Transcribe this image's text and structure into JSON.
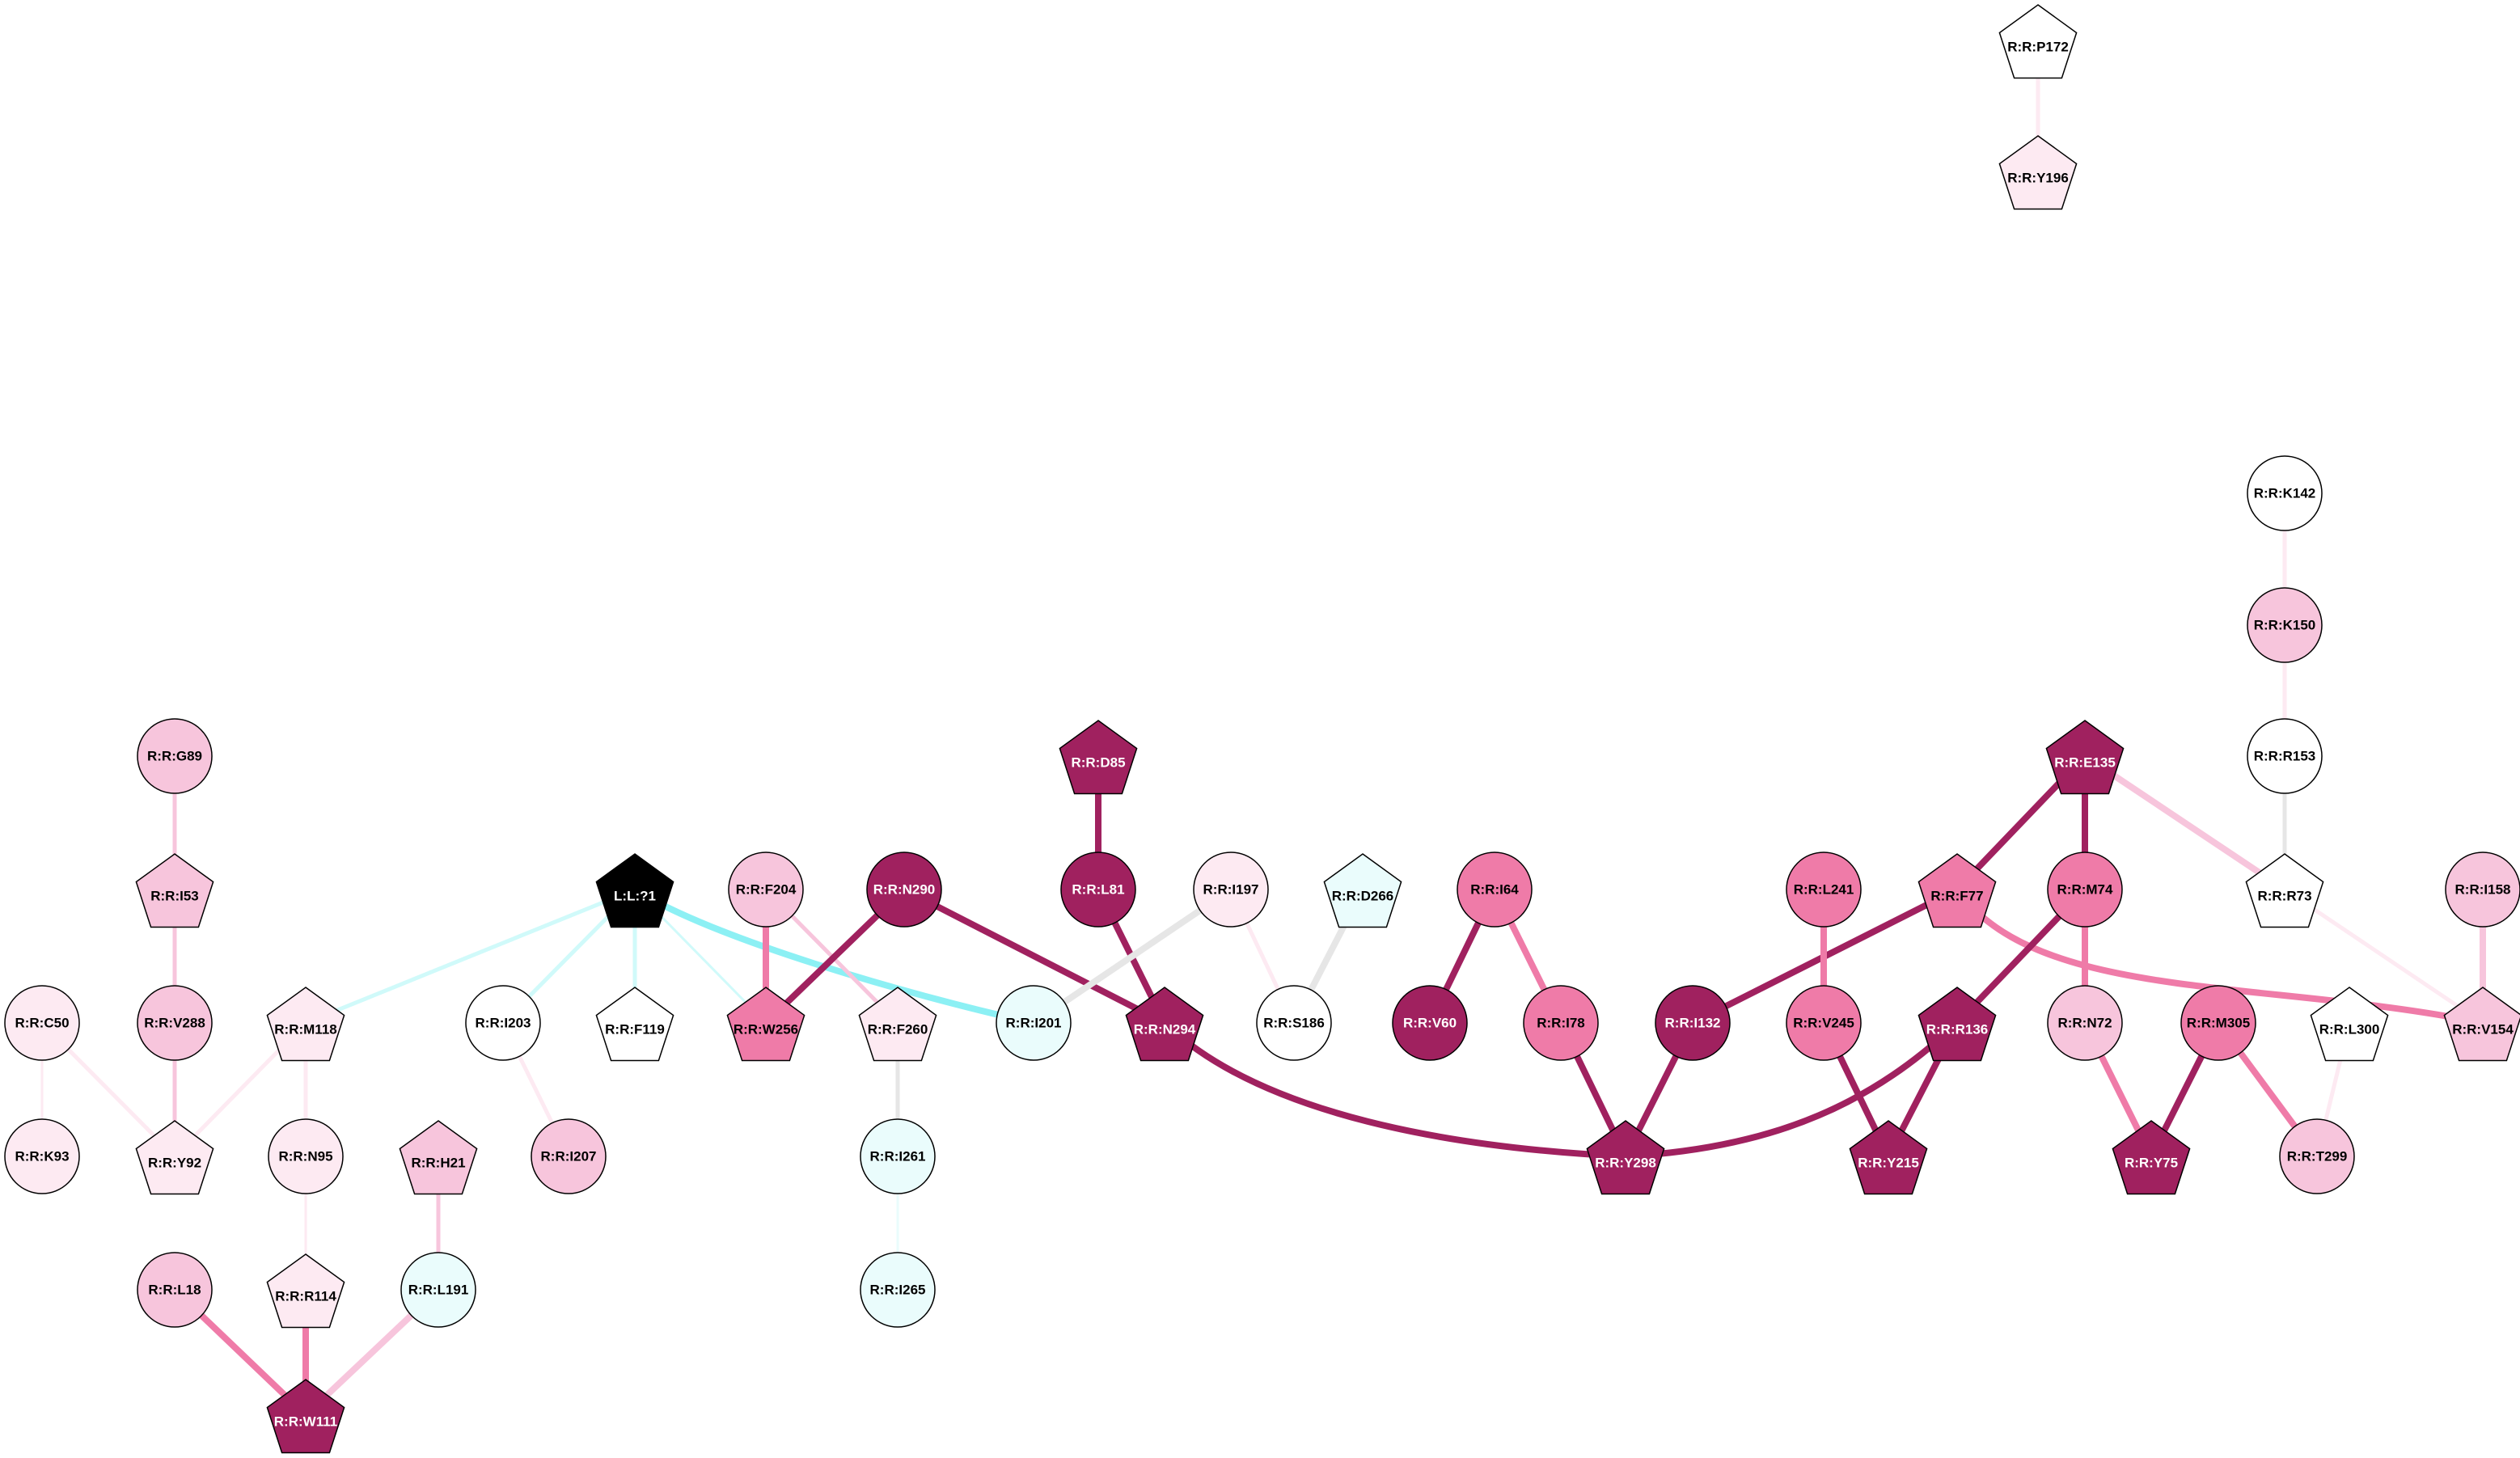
{
  "nodes": [
    {
      "id": "L:L:?1",
      "shape": "pentagon",
      "fill": "#000000",
      "text": "#ffffff"
    },
    {
      "id": "R:R:P172",
      "shape": "pentagon",
      "fill": "#ffffff",
      "text": "#000000"
    },
    {
      "id": "R:R:Y196",
      "shape": "pentagon",
      "fill": "#fdeaf2",
      "text": "#000000"
    },
    {
      "id": "R:R:K142",
      "shape": "circle",
      "fill": "#ffffff",
      "text": "#000000"
    },
    {
      "id": "R:R:K150",
      "shape": "circle",
      "fill": "#f7c5dc",
      "text": "#000000"
    },
    {
      "id": "R:R:R153",
      "shape": "circle",
      "fill": "#ffffff",
      "text": "#000000"
    },
    {
      "id": "R:R:G89",
      "shape": "circle",
      "fill": "#f7c5dc",
      "text": "#000000"
    },
    {
      "id": "R:R:I53",
      "shape": "pentagon",
      "fill": "#f7c5dc",
      "text": "#000000"
    },
    {
      "id": "R:R:D85",
      "shape": "pentagon",
      "fill": "#a0215f",
      "text": "#ffffff"
    },
    {
      "id": "R:R:E135",
      "shape": "pentagon",
      "fill": "#a0215f",
      "text": "#ffffff"
    },
    {
      "id": "R:R:F204",
      "shape": "circle",
      "fill": "#f7c5dc",
      "text": "#000000"
    },
    {
      "id": "R:R:N290",
      "shape": "circle",
      "fill": "#a0215f",
      "text": "#ffffff"
    },
    {
      "id": "R:R:L81",
      "shape": "circle",
      "fill": "#a0215f",
      "text": "#ffffff"
    },
    {
      "id": "R:R:I197",
      "shape": "circle",
      "fill": "#fdeaf2",
      "text": "#000000"
    },
    {
      "id": "R:R:D266",
      "shape": "pentagon",
      "fill": "#eafcfc",
      "text": "#000000"
    },
    {
      "id": "R:R:I64",
      "shape": "circle",
      "fill": "#ef7ba8",
      "text": "#000000"
    },
    {
      "id": "R:R:L241",
      "shape": "circle",
      "fill": "#ef7ba8",
      "text": "#000000"
    },
    {
      "id": "R:R:F77",
      "shape": "pentagon",
      "fill": "#ef7ba8",
      "text": "#000000"
    },
    {
      "id": "R:R:M74",
      "shape": "circle",
      "fill": "#ef7ba8",
      "text": "#000000"
    },
    {
      "id": "R:R:R73",
      "shape": "pentagon",
      "fill": "#ffffff",
      "text": "#000000"
    },
    {
      "id": "R:R:I158",
      "shape": "circle",
      "fill": "#f7c5dc",
      "text": "#000000"
    },
    {
      "id": "R:R:C50",
      "shape": "circle",
      "fill": "#fdeaf2",
      "text": "#000000"
    },
    {
      "id": "R:R:V288",
      "shape": "circle",
      "fill": "#f7c5dc",
      "text": "#000000"
    },
    {
      "id": "R:R:M118",
      "shape": "pentagon",
      "fill": "#fdeaf2",
      "text": "#000000"
    },
    {
      "id": "R:R:I203",
      "shape": "circle",
      "fill": "#ffffff",
      "text": "#000000"
    },
    {
      "id": "R:R:F119",
      "shape": "pentagon",
      "fill": "#ffffff",
      "text": "#000000"
    },
    {
      "id": "R:R:W256",
      "shape": "pentagon",
      "fill": "#ef7ba8",
      "text": "#000000"
    },
    {
      "id": "R:R:F260",
      "shape": "pentagon",
      "fill": "#fdeaf2",
      "text": "#000000"
    },
    {
      "id": "R:R:I201",
      "shape": "circle",
      "fill": "#eafcfc",
      "text": "#000000"
    },
    {
      "id": "R:R:N294",
      "shape": "pentagon",
      "fill": "#a0215f",
      "text": "#ffffff"
    },
    {
      "id": "R:R:S186",
      "shape": "circle",
      "fill": "#ffffff",
      "text": "#000000"
    },
    {
      "id": "R:R:V60",
      "shape": "circle",
      "fill": "#a0215f",
      "text": "#ffffff"
    },
    {
      "id": "R:R:I78",
      "shape": "circle",
      "fill": "#ef7ba8",
      "text": "#000000"
    },
    {
      "id": "R:R:I132",
      "shape": "circle",
      "fill": "#a0215f",
      "text": "#ffffff"
    },
    {
      "id": "R:R:V245",
      "shape": "circle",
      "fill": "#ef7ba8",
      "text": "#000000"
    },
    {
      "id": "R:R:R136",
      "shape": "pentagon",
      "fill": "#a0215f",
      "text": "#ffffff"
    },
    {
      "id": "R:R:N72",
      "shape": "circle",
      "fill": "#f7c5dc",
      "text": "#000000"
    },
    {
      "id": "R:R:M305",
      "shape": "circle",
      "fill": "#ef7ba8",
      "text": "#000000"
    },
    {
      "id": "R:R:L300",
      "shape": "pentagon",
      "fill": "#ffffff",
      "text": "#000000"
    },
    {
      "id": "R:R:V154",
      "shape": "pentagon",
      "fill": "#f7c5dc",
      "text": "#000000"
    },
    {
      "id": "R:R:K93",
      "shape": "circle",
      "fill": "#fdeaf2",
      "text": "#000000"
    },
    {
      "id": "R:R:Y92",
      "shape": "pentagon",
      "fill": "#fdeaf2",
      "text": "#000000"
    },
    {
      "id": "R:R:N95",
      "shape": "circle",
      "fill": "#fdeaf2",
      "text": "#000000"
    },
    {
      "id": "R:R:H21",
      "shape": "pentagon",
      "fill": "#f7c5dc",
      "text": "#000000"
    },
    {
      "id": "R:R:I207",
      "shape": "circle",
      "fill": "#f7c5dc",
      "text": "#000000"
    },
    {
      "id": "R:R:I261",
      "shape": "circle",
      "fill": "#eafcfc",
      "text": "#000000"
    },
    {
      "id": "R:R:Y298",
      "shape": "pentagon",
      "fill": "#a0215f",
      "text": "#ffffff"
    },
    {
      "id": "R:R:Y215",
      "shape": "pentagon",
      "fill": "#a0215f",
      "text": "#ffffff"
    },
    {
      "id": "R:R:Y75",
      "shape": "pentagon",
      "fill": "#a0215f",
      "text": "#ffffff"
    },
    {
      "id": "R:R:T299",
      "shape": "circle",
      "fill": "#f7c5dc",
      "text": "#000000"
    },
    {
      "id": "R:R:L18",
      "shape": "circle",
      "fill": "#f7c5dc",
      "text": "#000000"
    },
    {
      "id": "R:R:R114",
      "shape": "pentagon",
      "fill": "#fdeaf2",
      "text": "#000000"
    },
    {
      "id": "R:R:L191",
      "shape": "circle",
      "fill": "#eafcfc",
      "text": "#000000"
    },
    {
      "id": "R:R:I265",
      "shape": "circle",
      "fill": "#eafcfc",
      "text": "#000000"
    },
    {
      "id": "R:R:W111",
      "shape": "pentagon",
      "fill": "#a0215f",
      "text": "#ffffff"
    }
  ],
  "edges": [
    {
      "source": "R:R:P172",
      "target": "R:R:Y196",
      "color": "#fdeaf2",
      "weight": "medium"
    },
    {
      "source": "R:R:K142",
      "target": "R:R:K150",
      "color": "#fdeaf2",
      "weight": "medium"
    },
    {
      "source": "R:R:K150",
      "target": "R:R:R153",
      "color": "#fdeaf2",
      "weight": "medium"
    },
    {
      "source": "R:R:R153",
      "target": "R:R:R73",
      "color": "#e6e6e6",
      "weight": "medium"
    },
    {
      "source": "R:R:G89",
      "target": "R:R:I53",
      "color": "#f7c5dc",
      "weight": "medium"
    },
    {
      "source": "R:R:I53",
      "target": "R:R:V288",
      "color": "#f7c5dc",
      "weight": "medium"
    },
    {
      "source": "R:R:V288",
      "target": "R:R:Y92",
      "color": "#f7c5dc",
      "weight": "medium"
    },
    {
      "source": "R:R:C50",
      "target": "R:R:K93",
      "color": "#fdeaf2",
      "weight": "thin"
    },
    {
      "source": "R:R:C50",
      "target": "R:R:Y92",
      "color": "#fdeaf2",
      "weight": "medium"
    },
    {
      "source": "R:R:M118",
      "target": "R:R:Y92",
      "color": "#fdeaf2",
      "weight": "medium"
    },
    {
      "source": "R:R:M118",
      "target": "R:R:N95",
      "color": "#fdeaf2",
      "weight": "medium"
    },
    {
      "source": "R:R:N95",
      "target": "R:R:R114",
      "color": "#fdeaf2",
      "weight": "thin"
    },
    {
      "source": "R:R:R114",
      "target": "R:R:W111",
      "color": "#ef7ba8",
      "weight": "thick"
    },
    {
      "source": "R:R:L18",
      "target": "R:R:W111",
      "color": "#ef7ba8",
      "weight": "thick"
    },
    {
      "source": "R:R:L191",
      "target": "R:R:W111",
      "color": "#f7c5dc",
      "weight": "thick"
    },
    {
      "source": "R:R:H21",
      "target": "R:R:L191",
      "color": "#f7c5dc",
      "weight": "medium"
    },
    {
      "source": "L:L:?1",
      "target": "R:R:M118",
      "color": "#d0fafa",
      "weight": "medium"
    },
    {
      "source": "L:L:?1",
      "target": "R:R:I203",
      "color": "#d0fafa",
      "weight": "medium"
    },
    {
      "source": "L:L:?1",
      "target": "R:R:F119",
      "color": "#d0fafa",
      "weight": "medium"
    },
    {
      "source": "L:L:?1",
      "target": "R:R:W256",
      "color": "#d0fafa",
      "weight": "thin"
    },
    {
      "source": "L:L:?1",
      "target": "R:R:I201",
      "color": "#8cf0f4",
      "weight": "thick",
      "curve": true
    },
    {
      "source": "R:R:I203",
      "target": "R:R:I207",
      "color": "#fdeaf2",
      "weight": "medium"
    },
    {
      "source": "R:R:F204",
      "target": "R:R:W256",
      "color": "#ef7ba8",
      "weight": "thick"
    },
    {
      "source": "R:R:F204",
      "target": "R:R:F260",
      "color": "#f7c5dc",
      "weight": "medium"
    },
    {
      "source": "R:R:N290",
      "target": "R:R:W256",
      "color": "#a0215f",
      "weight": "thick"
    },
    {
      "source": "R:R:N290",
      "target": "R:R:N294",
      "color": "#a0215f",
      "weight": "thick"
    },
    {
      "source": "R:R:F260",
      "target": "R:R:I261",
      "color": "#e6e6e6",
      "weight": "medium"
    },
    {
      "source": "R:R:I261",
      "target": "R:R:I265",
      "color": "#eafcfc",
      "weight": "thin"
    },
    {
      "source": "R:R:D85",
      "target": "R:R:L81",
      "color": "#a0215f",
      "weight": "thick"
    },
    {
      "source": "R:R:L81",
      "target": "R:R:N294",
      "color": "#a0215f",
      "weight": "thick"
    },
    {
      "source": "R:R:I197",
      "target": "R:R:I201",
      "color": "#e6e6e6",
      "weight": "thick"
    },
    {
      "source": "R:R:I197",
      "target": "R:R:S186",
      "color": "#fdeaf2",
      "weight": "medium"
    },
    {
      "source": "R:R:D266",
      "target": "R:R:S186",
      "color": "#e6e6e6",
      "weight": "thick"
    },
    {
      "source": "R:R:N294",
      "target": "R:R:Y298",
      "color": "#a0215f",
      "weight": "thick",
      "curve": true
    },
    {
      "source": "R:R:I64",
      "target": "R:R:V60",
      "color": "#a0215f",
      "weight": "thick"
    },
    {
      "source": "R:R:I64",
      "target": "R:R:I78",
      "color": "#ef7ba8",
      "weight": "thick"
    },
    {
      "source": "R:R:I78",
      "target": "R:R:Y298",
      "color": "#a0215f",
      "weight": "thick"
    },
    {
      "source": "R:R:I132",
      "target": "R:R:Y298",
      "color": "#a0215f",
      "weight": "thick"
    },
    {
      "source": "R:R:F77",
      "target": "R:R:I132",
      "color": "#a0215f",
      "weight": "thick"
    },
    {
      "source": "R:R:E135",
      "target": "R:R:F77",
      "color": "#a0215f",
      "weight": "thick"
    },
    {
      "source": "R:R:E135",
      "target": "R:R:M74",
      "color": "#a0215f",
      "weight": "thick"
    },
    {
      "source": "R:R:E135",
      "target": "R:R:R73",
      "color": "#f7c5dc",
      "weight": "thick"
    },
    {
      "source": "R:R:F77",
      "target": "R:R:V154",
      "color": "#ef7ba8",
      "weight": "thick",
      "curve": true
    },
    {
      "source": "R:R:L241",
      "target": "R:R:V245",
      "color": "#ef7ba8",
      "weight": "thick"
    },
    {
      "source": "R:R:V245",
      "target": "R:R:Y215",
      "color": "#a0215f",
      "weight": "thick"
    },
    {
      "source": "R:R:R136",
      "target": "R:R:Y215",
      "color": "#a0215f",
      "weight": "thick"
    },
    {
      "source": "R:R:R136",
      "target": "R:R:Y298",
      "color": "#a0215f",
      "weight": "thick",
      "curve": true
    },
    {
      "source": "R:R:M74",
      "target": "R:R:R136",
      "color": "#a0215f",
      "weight": "thick"
    },
    {
      "source": "R:R:M74",
      "target": "R:R:N72",
      "color": "#ef7ba8",
      "weight": "thick"
    },
    {
      "source": "R:R:N72",
      "target": "R:R:Y75",
      "color": "#ef7ba8",
      "weight": "thick"
    },
    {
      "source": "R:R:M305",
      "target": "R:R:Y75",
      "color": "#a0215f",
      "weight": "thick"
    },
    {
      "source": "R:R:M305",
      "target": "R:R:T299",
      "color": "#ef7ba8",
      "weight": "thick"
    },
    {
      "source": "R:R:L300",
      "target": "R:R:T299",
      "color": "#fdeaf2",
      "weight": "medium"
    },
    {
      "source": "R:R:R73",
      "target": "R:R:V154",
      "color": "#fdeaf2",
      "weight": "medium"
    },
    {
      "source": "R:R:I158",
      "target": "R:R:V154",
      "color": "#f7c5dc",
      "weight": "thick"
    }
  ]
}
